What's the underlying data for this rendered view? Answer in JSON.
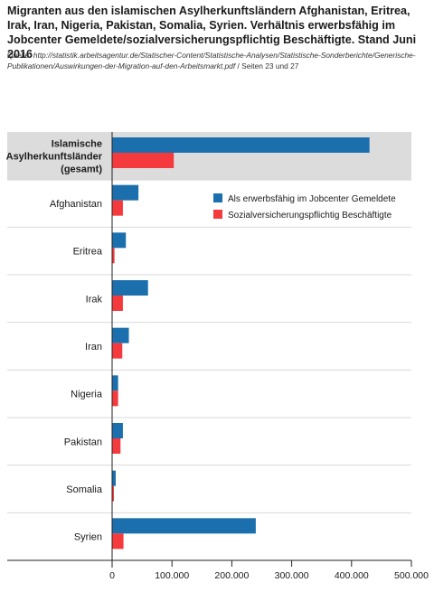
{
  "header": {
    "title": "Migranten aus den islamischen Asylherkunftsländern Afghanistan, Eritrea, Irak, Iran, Nigeria, Pakistan, Somalia, Syrien. Verhältnis erwerbsfähig im Jobcenter Gemeldete/sozialversicherungspflichtig Beschäftigte. Stand Juni 2016",
    "source_prefix": "Quelle: ",
    "source_url": "http://statistik.arbeitsagentur.de/Statischer-Content/Statistische-Analysen/Statistische-Sonderberichte/Generische-Publikationen/Auswirkungen-der-Migration-auf-den-Arbeitsmarkt.pdf",
    "source_suffix": " / Seiten 23 und 27"
  },
  "chart_data": {
    "type": "bar",
    "orientation": "horizontal",
    "categories": [
      [
        "Islamische",
        "Asylherkunftsländer",
        "(gesamt)"
      ],
      [
        "Afghanistan"
      ],
      [
        "Eritrea"
      ],
      [
        "Irak"
      ],
      [
        "Iran"
      ],
      [
        "Nigeria"
      ],
      [
        "Pakistan"
      ],
      [
        "Somalia"
      ],
      [
        "Syrien"
      ]
    ],
    "series": [
      {
        "name": "Als erwerbsfähig im Jobcenter Gemeldete",
        "color": "#1b6fad",
        "values": [
          430000,
          44000,
          23000,
          60000,
          28000,
          10000,
          18000,
          6000,
          240000
        ]
      },
      {
        "name": "Sozialversicherungspflichtig Beschäftigte",
        "color": "#f43a3c",
        "values": [
          103000,
          18000,
          4000,
          18000,
          17000,
          10000,
          14000,
          3000,
          19000
        ]
      }
    ],
    "xlim": [
      0,
      500000
    ],
    "xticks": [
      "0",
      "100.000",
      "200.000",
      "300.000",
      "400.000",
      "500.000"
    ],
    "xtick_values": [
      0,
      100000,
      200000,
      300000,
      400000,
      500000
    ],
    "highlight_first_row": true,
    "highlight_color": "#dcdcdc",
    "legend_position": "top-right",
    "grid": false
  }
}
